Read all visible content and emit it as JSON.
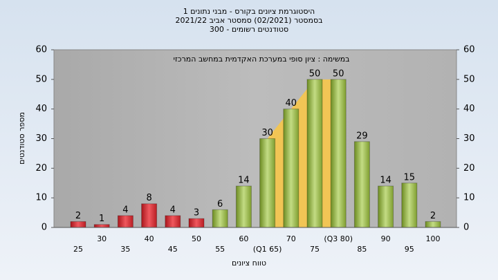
{
  "chart_data": {
    "type": "bar",
    "title": [
      "היסטוגרמת ציונים בקורס - מבני נתונים 1",
      "בסמסטר  (02/2021)  סמסטר אביב 2021/22",
      "סטודנטים רשומים - 300"
    ],
    "annotation": "במשימה : ציון סופי במערכת האקדמית במחשב המרכזי",
    "xlabel": "טווח ציונים",
    "ylabel": "מספר סטודנטים",
    "categories": [
      "25",
      "30",
      "35",
      "40",
      "45",
      "50",
      "55",
      "60",
      "(Q1 65)",
      "70",
      "75",
      "(Q3 80)",
      "85",
      "90",
      "95",
      "100"
    ],
    "values": [
      2,
      1,
      4,
      8,
      4,
      3,
      6,
      14,
      30,
      40,
      50,
      50,
      29,
      14,
      15,
      2
    ],
    "colors": [
      "red",
      "red",
      "red",
      "red",
      "red",
      "red",
      "green",
      "green",
      "green",
      "green",
      "green",
      "green",
      "green",
      "green",
      "green",
      "green"
    ],
    "ylim": [
      0,
      60
    ],
    "yticks": [
      0,
      10,
      20,
      30,
      40,
      50,
      60
    ],
    "grid": false
  }
}
